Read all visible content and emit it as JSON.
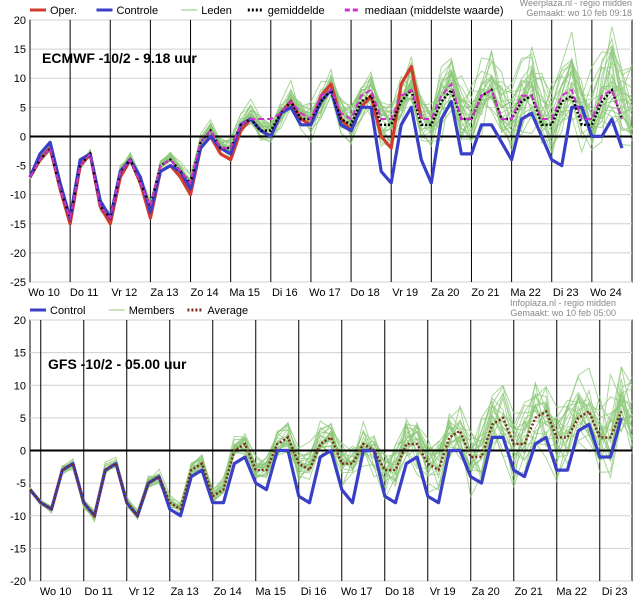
{
  "chart_data": [
    {
      "type": "line",
      "title": "ECMWF -10/2 - 9.18 uur",
      "credit_line1": "Weerplaza.nl - regio midden",
      "credit_line2": "Gemaakt: wo 10 feb 09:18",
      "ylim": [
        -25,
        20
      ],
      "yticks": [
        20,
        15,
        10,
        5,
        0,
        -5,
        -10,
        -15,
        -20,
        -25
      ],
      "grid": true,
      "x_unit": "steps (6-hourly)",
      "xlim": [
        0,
        60
      ],
      "day_labels": [
        {
          "label": "Wo 10",
          "x": 0
        },
        {
          "label": "Do 11",
          "x": 4
        },
        {
          "label": "Vr 12",
          "x": 8
        },
        {
          "label": "Za 13",
          "x": 12
        },
        {
          "label": "Zo 14",
          "x": 16
        },
        {
          "label": "Ma 15",
          "x": 20
        },
        {
          "label": "Di 16",
          "x": 24
        },
        {
          "label": "Wo 17",
          "x": 28
        },
        {
          "label": "Do 18",
          "x": 32
        },
        {
          "label": "Vr 19",
          "x": 36
        },
        {
          "label": "Za 20",
          "x": 40
        },
        {
          "label": "Zo 21",
          "x": 44
        },
        {
          "label": "Ma 22",
          "x": 48
        },
        {
          "label": "Di 23",
          "x": 52
        },
        {
          "label": "Wo 24",
          "x": 56
        }
      ],
      "legend": [
        {
          "label": "Oper.",
          "color": "#d23c2e",
          "style": "solid"
        },
        {
          "label": "Controle",
          "color": "#3a3fc8",
          "style": "solid"
        },
        {
          "label": "Leden",
          "color": "#8cc878",
          "style": "thin"
        },
        {
          "label": "gemiddelde",
          "color": "#000000",
          "style": "dotted"
        },
        {
          "label": "mediaan (middelste waarde)",
          "color": "#cc33cc",
          "style": "dashed"
        }
      ],
      "series": [
        {
          "name": "Oper.",
          "color": "#d23c2e",
          "values": [
            -7,
            -4,
            -2,
            -9,
            -15,
            -5,
            -3,
            -12,
            -15,
            -7,
            -4,
            -8,
            -14,
            -6,
            -5,
            -7,
            -10,
            -2,
            0,
            -3,
            -4,
            1,
            3,
            1,
            0,
            4,
            6,
            3,
            2,
            7,
            9,
            3,
            1,
            5,
            7,
            0,
            -2,
            9,
            12,
            3,
            null
          ]
        },
        {
          "name": "Controle",
          "color": "#3a3fc8",
          "values": [
            -7,
            -3,
            -1,
            -8,
            -14,
            -4,
            -3,
            -11,
            -14,
            -6,
            -4,
            -7,
            -13,
            -6,
            -5,
            -6,
            -9,
            -2,
            0,
            -2,
            -3,
            2,
            3,
            1,
            0,
            4,
            5,
            2,
            2,
            6,
            8,
            2,
            1,
            5,
            5,
            -6,
            -8,
            2,
            5,
            -4,
            -8,
            3,
            6,
            -3,
            -3,
            2,
            2,
            -1,
            -4,
            3,
            4,
            0,
            -4,
            -5,
            5,
            5,
            0,
            0,
            3,
            -2,
            null
          ]
        },
        {
          "name": "gemiddelde",
          "color": "#000000",
          "values": [
            -7,
            -4,
            -2,
            -9,
            -14,
            -5,
            -3,
            -12,
            -14,
            -6,
            -4,
            -8,
            -12,
            -5,
            -4,
            -6,
            -8,
            -1,
            1,
            -2,
            -2,
            2,
            3,
            1,
            1,
            4,
            6,
            3,
            3,
            6,
            8,
            3,
            2,
            6,
            7,
            2,
            2,
            6,
            8,
            2,
            2,
            6,
            8,
            3,
            3,
            7,
            8,
            3,
            3,
            6,
            7,
            2,
            2,
            6,
            7,
            2,
            2,
            6,
            8,
            3,
            null
          ]
        },
        {
          "name": "mediaan (middelste waarde)",
          "color": "#cc33cc",
          "values": [
            -7,
            -4,
            -2,
            -9,
            -14,
            -5,
            -3,
            -12,
            -14,
            -6,
            -4,
            -8,
            -12,
            -5,
            -4,
            -6,
            -8,
            -1,
            1,
            -2,
            -2,
            2,
            3,
            3,
            3,
            4,
            6,
            4,
            3,
            7,
            8,
            4,
            3,
            7,
            8,
            3,
            3,
            7,
            8,
            3,
            3,
            7,
            9,
            3,
            3,
            7,
            8,
            3,
            3,
            7,
            7,
            3,
            3,
            7,
            8,
            3,
            3,
            7,
            8,
            3,
            null
          ]
        }
      ]
    },
    {
      "type": "line",
      "title": "GFS -10/2 - 05.00 uur",
      "credit_line1": "Infoplaza.nl - regio midden",
      "credit_line2": "Gemaakt: wo 10 feb 05:00",
      "ylim": [
        -20,
        20
      ],
      "yticks": [
        20,
        15,
        10,
        5,
        0,
        -5,
        -10,
        -15,
        -20
      ],
      "grid": true,
      "x_unit": "steps (6-hourly)",
      "xlim": [
        0,
        56
      ],
      "day_labels": [
        {
          "label": "Wo 10",
          "x": 1
        },
        {
          "label": "Do 11",
          "x": 5
        },
        {
          "label": "Vr 12",
          "x": 9
        },
        {
          "label": "Za 13",
          "x": 13
        },
        {
          "label": "Zo 14",
          "x": 17
        },
        {
          "label": "Ma 15",
          "x": 21
        },
        {
          "label": "Di 16",
          "x": 25
        },
        {
          "label": "Wo 17",
          "x": 29
        },
        {
          "label": "Do 18",
          "x": 33
        },
        {
          "label": "Vr 19",
          "x": 37
        },
        {
          "label": "Za 20",
          "x": 41
        },
        {
          "label": "Zo 21",
          "x": 45
        },
        {
          "label": "Ma 22",
          "x": 49
        },
        {
          "label": "Di 23",
          "x": 53
        }
      ],
      "legend": [
        {
          "label": "Control",
          "color": "#3a3fc8",
          "style": "solid"
        },
        {
          "label": "Members",
          "color": "#8cc878",
          "style": "thin"
        },
        {
          "label": "Average",
          "color": "#7a2a1a",
          "style": "dotted"
        }
      ],
      "series": [
        {
          "name": "Control",
          "color": "#3a3fc8",
          "values": [
            -6,
            -8,
            -9,
            -3,
            -2,
            -8,
            -10,
            -3,
            -2,
            -8,
            -10,
            -5,
            -4,
            -9,
            -10,
            -4,
            -3,
            -8,
            -8,
            -2,
            -1,
            -5,
            -6,
            0,
            0,
            -7,
            -8,
            -1,
            0,
            -6,
            -8,
            0,
            0,
            -7,
            -8,
            -2,
            -1,
            -7,
            -8,
            0,
            0,
            -4,
            -5,
            2,
            2,
            -3,
            -4,
            1,
            2,
            -3,
            -3,
            3,
            4,
            -1,
            -1,
            5
          ]
        },
        {
          "name": "Average",
          "color": "#7a2a1a",
          "values": [
            -6,
            -8,
            -9,
            -3,
            -2,
            -8,
            -10,
            -3,
            -2,
            -8,
            -10,
            -5,
            -4,
            -8,
            -9,
            -3,
            -2,
            -7,
            -6,
            0,
            1,
            -3,
            -3,
            1,
            2,
            -2,
            -3,
            1,
            2,
            -2,
            -2,
            1,
            0,
            -3,
            -3,
            1,
            1,
            -2,
            -3,
            2,
            3,
            -1,
            -1,
            4,
            5,
            1,
            1,
            5,
            6,
            2,
            2,
            5,
            6,
            2,
            2,
            6
          ]
        }
      ]
    }
  ]
}
